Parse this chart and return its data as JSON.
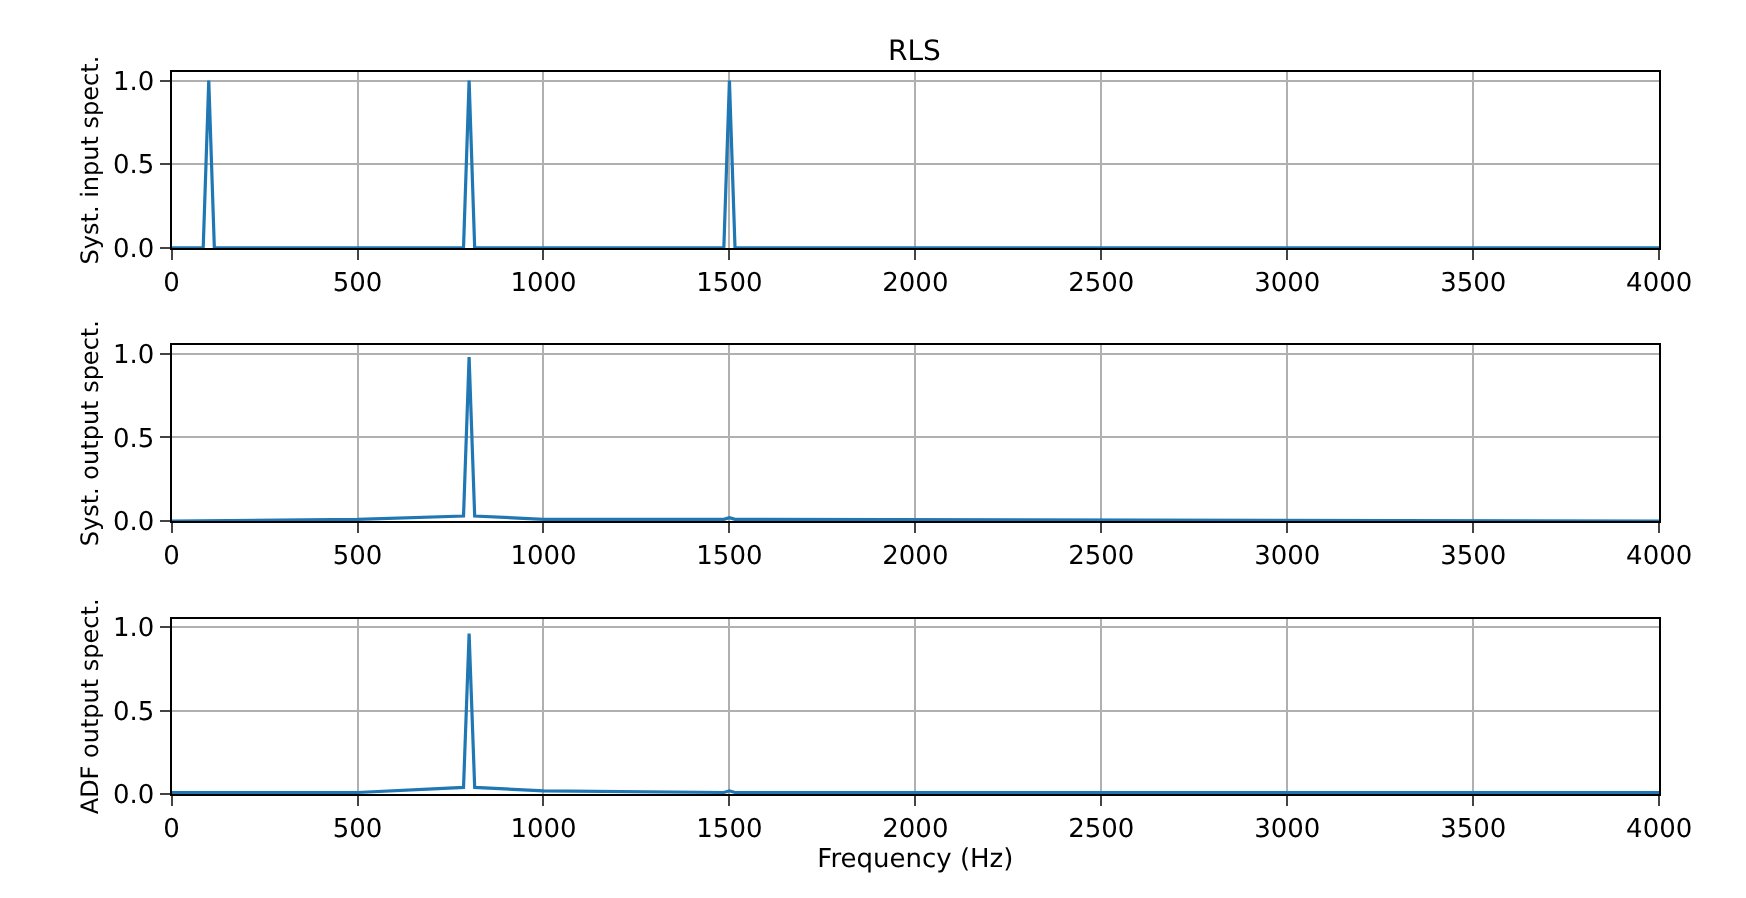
{
  "chart_data": [
    {
      "type": "line",
      "title": "RLS",
      "ylabel": "Syst. input spect.",
      "xlim": [
        0,
        4000
      ],
      "xticks": [
        0,
        500,
        1000,
        1500,
        2000,
        2500,
        3000,
        3500,
        4000
      ],
      "ylim": [
        0,
        1.05
      ],
      "yticks": [
        {
          "value": 0,
          "label": "0.0"
        },
        {
          "value": 0.5,
          "label": "0.5"
        },
        {
          "value": 1,
          "label": "1.0"
        }
      ],
      "grid": true,
      "marker": "none",
      "line_style": "solid",
      "series": [
        {
          "color": "#1f77b4",
          "x": [
            0,
            85,
            100,
            115,
            785,
            800,
            815,
            1485,
            1500,
            1515,
            4000
          ],
          "values": [
            0,
            0,
            1,
            0,
            0,
            1,
            0,
            0,
            1,
            0,
            0
          ]
        }
      ]
    },
    {
      "type": "line",
      "ylabel": "Syst. output spect.",
      "xlim": [
        0,
        4000
      ],
      "xticks": [
        0,
        500,
        1000,
        1500,
        2000,
        2500,
        3000,
        3500,
        4000
      ],
      "ylim": [
        0,
        1.05
      ],
      "yticks": [
        {
          "value": 0,
          "label": "0.0"
        },
        {
          "value": 0.5,
          "label": "0.5"
        },
        {
          "value": 1,
          "label": "1.0"
        }
      ],
      "grid": true,
      "marker": "none",
      "line_style": "solid",
      "series": [
        {
          "color": "#1f77b4",
          "x": [
            0,
            500,
            785,
            800,
            815,
            1000,
            1485,
            1500,
            1515,
            4000
          ],
          "values": [
            0,
            0.01,
            0.03,
            0.98,
            0.03,
            0.01,
            0.01,
            0.02,
            0.01,
            0
          ]
        }
      ]
    },
    {
      "type": "line",
      "ylabel": "ADF output spect.",
      "xlabel": "Frequency (Hz)",
      "xlim": [
        0,
        4000
      ],
      "xticks": [
        0,
        500,
        1000,
        1500,
        2000,
        2500,
        3000,
        3500,
        4000
      ],
      "ylim": [
        0,
        1.05
      ],
      "yticks": [
        {
          "value": 0,
          "label": "0.0"
        },
        {
          "value": 0.5,
          "label": "0.5"
        },
        {
          "value": 1,
          "label": "1.0"
        }
      ],
      "grid": true,
      "marker": "none",
      "line_style": "solid",
      "series": [
        {
          "color": "#1f77b4",
          "x": [
            0,
            500,
            785,
            800,
            815,
            1000,
            1485,
            1500,
            1515,
            4000
          ],
          "values": [
            0.01,
            0.01,
            0.04,
            0.96,
            0.04,
            0.02,
            0.01,
            0.02,
            0.01,
            0.01
          ]
        }
      ]
    }
  ]
}
